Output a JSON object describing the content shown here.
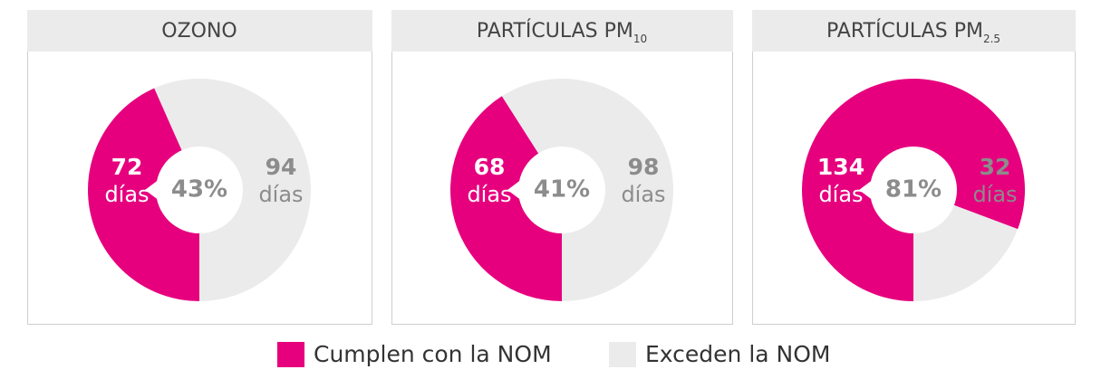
{
  "chart_data": [
    {
      "type": "donut",
      "title": "OZONO",
      "values": [
        72,
        94
      ],
      "unit": "días",
      "percent": {
        "value": 43,
        "label": "43%"
      }
    },
    {
      "type": "donut",
      "title": "PARTÍCULAS PM",
      "title_subscript": "10",
      "values": [
        68,
        98
      ],
      "unit": "días",
      "percent": {
        "value": 41,
        "label": "41%"
      }
    },
    {
      "type": "donut",
      "title": "PARTÍCULAS PM",
      "title_subscript": "2.5",
      "values": [
        134,
        32
      ],
      "unit": "días",
      "percent": {
        "value": 81,
        "label": "81%"
      }
    }
  ],
  "legend": {
    "categories": [
      "Cumplen con la NOM",
      "Exceden la NOM"
    ],
    "colors": [
      "#e6007e",
      "#ebebeb"
    ]
  }
}
